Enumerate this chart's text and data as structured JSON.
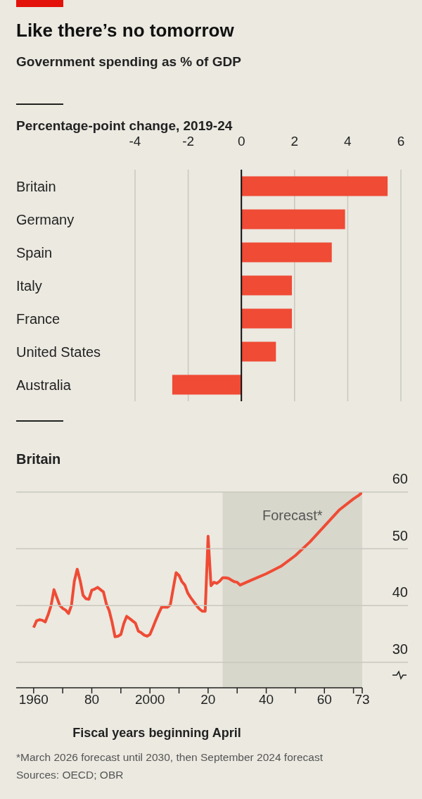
{
  "chart_data": [
    {
      "type": "bar",
      "title": "Like there’s no tomorrow",
      "subtitle": "Government spending as % of GDP",
      "xlabel": "Percentage-point change, 2019-24",
      "orientation": "horizontal",
      "categories": [
        "Britain",
        "Germany",
        "Spain",
        "Italy",
        "France",
        "United States",
        "Australia"
      ],
      "values": [
        5.5,
        3.9,
        3.4,
        1.9,
        1.9,
        1.3,
        -2.6
      ],
      "color": "#ef4b35",
      "xlim": [
        -4,
        6
      ],
      "xticks": [
        -4,
        -2,
        0,
        2,
        4,
        6
      ],
      "grid": "x",
      "ref_lines": [
        {
          "axis": "x",
          "value": 0,
          "color": "#111111"
        }
      ]
    },
    {
      "type": "line",
      "title": "Britain",
      "xlabel": "Fiscal years beginning April",
      "marker": "none",
      "grid": "y",
      "x": [
        1960,
        1961,
        1962,
        1963,
        1964,
        1965,
        1966,
        1967,
        1968,
        1969,
        1970,
        1971,
        1972,
        1973,
        1974,
        1975,
        1976,
        1977,
        1978,
        1979,
        1980,
        1981,
        1982,
        1983,
        1984,
        1985,
        1986,
        1987,
        1988,
        1989,
        1990,
        1991,
        1992,
        1993,
        1994,
        1995,
        1996,
        1997,
        1998,
        1999,
        2000,
        2001,
        2002,
        2003,
        2004,
        2005,
        2006,
        2007,
        2008,
        2009,
        2010,
        2011,
        2012,
        2013,
        2014,
        2015,
        2016,
        2017,
        2018,
        2019,
        2020,
        2021,
        2022,
        2023,
        2024,
        2025,
        2026,
        2027,
        2028,
        2029,
        2030,
        2031,
        2035,
        2040,
        2045,
        2050,
        2055,
        2060,
        2065,
        2070,
        2072,
        2073
      ],
      "values": [
        36.1,
        37.3,
        37.5,
        37.4,
        37.1,
        38.4,
        40.0,
        42.8,
        41.4,
        40.0,
        39.5,
        39.2,
        38.6,
        40.0,
        44.3,
        46.4,
        44.4,
        41.8,
        41.2,
        41.1,
        42.7,
        42.9,
        43.2,
        42.8,
        42.4,
        40.3,
        39.1,
        37.0,
        34.5,
        34.6,
        34.9,
        36.8,
        38.1,
        37.7,
        37.3,
        36.9,
        35.5,
        35.2,
        34.8,
        34.6,
        34.9,
        36.1,
        37.4,
        38.6,
        39.7,
        39.7,
        39.7,
        40.1,
        43.0,
        45.8,
        45.3,
        44.2,
        43.6,
        42.2,
        41.4,
        40.7,
        40.0,
        39.4,
        39.0,
        39.0,
        52.2,
        43.5,
        44.1,
        43.9,
        44.3,
        44.9,
        44.9,
        44.8,
        44.5,
        44.2,
        44.1,
        43.6,
        44.5,
        45.6,
        46.9,
        48.8,
        51.2,
        54.0,
        56.8,
        58.8,
        59.5,
        60.0
      ],
      "color": "#ef4b35",
      "xlim": [
        1954,
        2073
      ],
      "xticks": [
        1960,
        {
          "value": 1970,
          "label": null
        },
        {
          "value": 1980,
          "label": "80"
        },
        {
          "value": 1990,
          "label": null
        },
        2000,
        {
          "value": 2010,
          "label": null
        },
        {
          "value": 2020,
          "label": "20"
        },
        {
          "value": 2030,
          "label": null
        },
        {
          "value": 2040,
          "label": "40"
        },
        {
          "value": 2050,
          "label": null
        },
        {
          "value": 2060,
          "label": "60"
        },
        {
          "value": 2070,
          "label": null
        },
        {
          "value": 2073,
          "label": "73"
        }
      ],
      "ylim": [
        25.5,
        60
      ],
      "yticks": [
        30,
        40,
        50,
        60
      ],
      "bands": [
        {
          "axis": "x",
          "from": 2025,
          "to": 2073,
          "label": "Forecast*",
          "color": "#d8d7cc"
        }
      ],
      "annotations": [
        "*March 2026 forecast until 2030, then September 2024 forecast",
        "Sources: OECD; OBR"
      ]
    }
  ]
}
